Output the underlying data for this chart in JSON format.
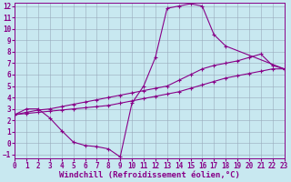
{
  "xlabel": "Windchill (Refroidissement éolien,°C)",
  "xlim": [
    0,
    23
  ],
  "ylim": [
    -1.3,
    12.3
  ],
  "xticks": [
    0,
    1,
    2,
    3,
    4,
    5,
    6,
    7,
    8,
    9,
    10,
    11,
    12,
    13,
    14,
    15,
    16,
    17,
    18,
    19,
    20,
    21,
    22,
    23
  ],
  "yticks": [
    -1,
    0,
    1,
    2,
    3,
    4,
    5,
    6,
    7,
    8,
    9,
    10,
    11,
    12
  ],
  "background_color": "#c8e8f0",
  "grid_color": "#99aabb",
  "line_color": "#880088",
  "curve_loop_x": [
    0,
    1,
    2,
    3,
    4,
    5,
    6,
    7,
    8,
    9,
    10,
    11,
    12,
    13,
    14,
    15,
    16,
    17,
    18,
    23
  ],
  "curve_loop_y": [
    2.5,
    3.0,
    3.0,
    2.2,
    1.1,
    0.1,
    -0.2,
    -0.3,
    -0.5,
    -1.2,
    3.5,
    5.0,
    7.5,
    11.8,
    12.0,
    12.2,
    12.0,
    9.5,
    8.5,
    6.5
  ],
  "curve_upper_x": [
    0,
    1,
    2,
    3,
    4,
    5,
    6,
    7,
    8,
    9,
    10,
    11,
    12,
    13,
    14,
    15,
    16,
    17,
    18,
    19,
    20,
    21,
    22,
    23
  ],
  "curve_upper_y": [
    2.5,
    2.7,
    2.9,
    3.0,
    3.2,
    3.4,
    3.6,
    3.8,
    4.0,
    4.2,
    4.4,
    4.6,
    4.8,
    5.0,
    5.5,
    6.0,
    6.5,
    6.8,
    7.0,
    7.2,
    7.5,
    7.8,
    6.8,
    6.5
  ],
  "curve_lower_x": [
    0,
    1,
    2,
    3,
    4,
    5,
    6,
    7,
    8,
    9,
    10,
    11,
    12,
    13,
    14,
    15,
    16,
    17,
    18,
    19,
    20,
    21,
    22,
    23
  ],
  "curve_lower_y": [
    2.5,
    2.6,
    2.7,
    2.8,
    2.9,
    3.0,
    3.1,
    3.2,
    3.3,
    3.5,
    3.7,
    3.9,
    4.1,
    4.3,
    4.5,
    4.8,
    5.1,
    5.4,
    5.7,
    5.9,
    6.1,
    6.3,
    6.5,
    6.5
  ],
  "marker": "+",
  "markersize": 3,
  "markeredgewidth": 0.8,
  "linewidth": 0.8,
  "tick_fontsize": 5.5,
  "xlabel_fontsize": 6.5
}
